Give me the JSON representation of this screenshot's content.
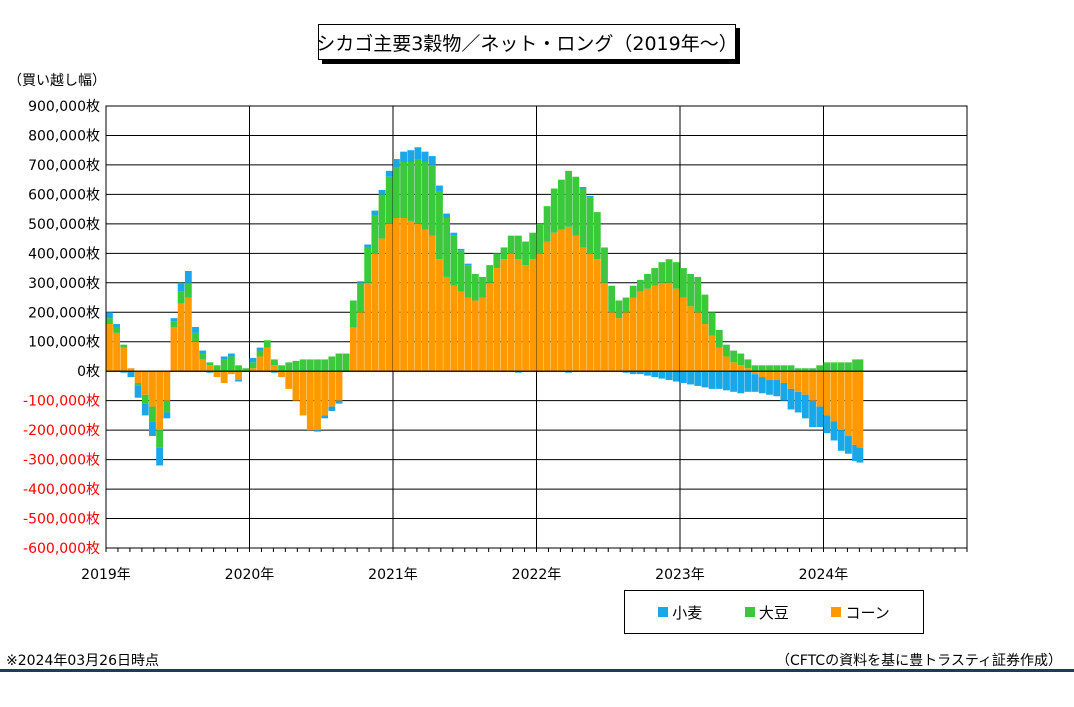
{
  "title": "シカゴ主要3穀物／ネット・ロング（2019年～）",
  "unit_label": "（買い越し幅）",
  "footnote": "※2024年03月26日時点",
  "source": "（CFTCの資料を基に豊トラスティ証券作成）",
  "colors": {
    "wheat": "#1aa7e8",
    "soy": "#3cc83c",
    "corn": "#ff9900",
    "negative_tick": "#ff0000",
    "grid": "#000000",
    "rule": "#1f3864"
  },
  "chart_data": {
    "type": "bar",
    "stacked": true,
    "title": "シカゴ主要3穀物／ネット・ロング（2019年～）",
    "ylabel": "（買い越し幅）",
    "ylim": [
      -600000,
      900000
    ],
    "xlim": [
      2019.0,
      2025.0
    ],
    "grid": true,
    "legend_position": "bottom-right",
    "y_ticks": [
      900000,
      800000,
      700000,
      600000,
      500000,
      400000,
      300000,
      200000,
      100000,
      0,
      -100000,
      -200000,
      -300000,
      -400000,
      -500000,
      -600000
    ],
    "y_tick_labels": [
      "900,000枚",
      "800,000枚",
      "700,000枚",
      "600,000枚",
      "500,000枚",
      "400,000枚",
      "300,000枚",
      "200,000枚",
      "100,000枚",
      "0枚",
      "-100,000枚",
      "-200,000枚",
      "-300,000枚",
      "-400,000枚",
      "-500,000枚",
      "-600,000枚"
    ],
    "x_tick_labels": [
      "2019年",
      "2020年",
      "2021年",
      "2022年",
      "2023年",
      "2024年"
    ],
    "x_tick_values": [
      2019,
      2020,
      2021,
      2022,
      2023,
      2024
    ],
    "x": [
      2019.0,
      2019.05,
      2019.1,
      2019.15,
      2019.2,
      2019.25,
      2019.3,
      2019.35,
      2019.4,
      2019.45,
      2019.5,
      2019.55,
      2019.6,
      2019.65,
      2019.7,
      2019.75,
      2019.8,
      2019.85,
      2019.9,
      2019.95,
      2020.0,
      2020.05,
      2020.1,
      2020.15,
      2020.2,
      2020.25,
      2020.3,
      2020.35,
      2020.4,
      2020.45,
      2020.5,
      2020.55,
      2020.6,
      2020.65,
      2020.7,
      2020.75,
      2020.8,
      2020.85,
      2020.9,
      2020.95,
      2021.0,
      2021.05,
      2021.1,
      2021.15,
      2021.2,
      2021.25,
      2021.3,
      2021.35,
      2021.4,
      2021.45,
      2021.5,
      2021.55,
      2021.6,
      2021.65,
      2021.7,
      2021.75,
      2021.8,
      2021.85,
      2021.9,
      2021.95,
      2022.0,
      2022.05,
      2022.1,
      2022.15,
      2022.2,
      2022.25,
      2022.3,
      2022.35,
      2022.4,
      2022.45,
      2022.5,
      2022.55,
      2022.6,
      2022.65,
      2022.7,
      2022.75,
      2022.8,
      2022.85,
      2022.9,
      2022.95,
      2023.0,
      2023.05,
      2023.1,
      2023.15,
      2023.2,
      2023.25,
      2023.3,
      2023.35,
      2023.4,
      2023.45,
      2023.5,
      2023.55,
      2023.6,
      2023.65,
      2023.7,
      2023.75,
      2023.8,
      2023.85,
      2023.9,
      2023.95,
      2024.0,
      2024.05,
      2024.1,
      2024.15,
      2024.2,
      2024.23
    ],
    "series": [
      {
        "name": "小麦",
        "color": "#1aa7e8",
        "values": [
          20000,
          10000,
          -5000,
          -20000,
          -40000,
          -40000,
          -50000,
          -60000,
          -20000,
          10000,
          30000,
          40000,
          20000,
          10000,
          -5000,
          0,
          10000,
          10000,
          -5000,
          0,
          15000,
          10000,
          0,
          -5000,
          0,
          0,
          0,
          0,
          0,
          -5000,
          -10000,
          -15000,
          -10000,
          0,
          0,
          5000,
          10000,
          15000,
          15000,
          20000,
          30000,
          35000,
          40000,
          40000,
          35000,
          30000,
          20000,
          15000,
          10000,
          5000,
          5000,
          0,
          0,
          0,
          0,
          0,
          0,
          -5000,
          0,
          0,
          0,
          0,
          0,
          0,
          -5000,
          0,
          5000,
          5000,
          0,
          0,
          0,
          0,
          -5000,
          -10000,
          -10000,
          -15000,
          -20000,
          -25000,
          -30000,
          -35000,
          -40000,
          -45000,
          -50000,
          -55000,
          -60000,
          -60000,
          -65000,
          -70000,
          -75000,
          -70000,
          -60000,
          -55000,
          -50000,
          -55000,
          -60000,
          -70000,
          -70000,
          -80000,
          -90000,
          -70000,
          -60000,
          -65000,
          -70000,
          -60000,
          -55000,
          -50000
        ]
      },
      {
        "name": "大豆",
        "color": "#3cc83c",
        "values": [
          20000,
          20000,
          10000,
          0,
          -10000,
          -30000,
          -50000,
          -60000,
          -40000,
          20000,
          40000,
          50000,
          30000,
          20000,
          10000,
          20000,
          40000,
          50000,
          20000,
          10000,
          20000,
          20000,
          25000,
          20000,
          20000,
          30000,
          35000,
          40000,
          40000,
          40000,
          40000,
          50000,
          60000,
          60000,
          90000,
          100000,
          120000,
          130000,
          150000,
          160000,
          170000,
          190000,
          200000,
          220000,
          230000,
          240000,
          230000,
          200000,
          170000,
          140000,
          110000,
          90000,
          70000,
          60000,
          50000,
          40000,
          60000,
          80000,
          80000,
          90000,
          100000,
          120000,
          150000,
          170000,
          190000,
          200000,
          200000,
          190000,
          160000,
          120000,
          90000,
          60000,
          50000,
          40000,
          40000,
          50000,
          60000,
          70000,
          80000,
          90000,
          100000,
          110000,
          120000,
          100000,
          80000,
          60000,
          40000,
          40000,
          40000,
          30000,
          20000,
          20000,
          20000,
          20000,
          20000,
          20000,
          10000,
          10000,
          10000,
          20000,
          30000,
          30000,
          30000,
          30000,
          40000,
          40000
        ]
      },
      {
        "name": "コーン",
        "color": "#ff9900",
        "values": [
          160000,
          130000,
          80000,
          10000,
          -40000,
          -80000,
          -120000,
          -200000,
          -100000,
          150000,
          230000,
          250000,
          100000,
          40000,
          20000,
          -20000,
          -40000,
          -10000,
          -30000,
          0,
          10000,
          50000,
          80000,
          20000,
          -20000,
          -60000,
          -100000,
          -150000,
          -200000,
          -200000,
          -150000,
          -120000,
          -100000,
          0,
          150000,
          200000,
          300000,
          400000,
          450000,
          500000,
          520000,
          520000,
          510000,
          500000,
          480000,
          460000,
          380000,
          320000,
          290000,
          270000,
          250000,
          240000,
          250000,
          300000,
          350000,
          380000,
          400000,
          380000,
          360000,
          380000,
          400000,
          440000,
          470000,
          480000,
          490000,
          460000,
          420000,
          400000,
          380000,
          300000,
          200000,
          180000,
          200000,
          250000,
          270000,
          280000,
          290000,
          300000,
          300000,
          280000,
          250000,
          220000,
          200000,
          160000,
          120000,
          80000,
          50000,
          30000,
          20000,
          10000,
          -10000,
          -20000,
          -30000,
          -30000,
          -40000,
          -60000,
          -70000,
          -80000,
          -100000,
          -120000,
          -150000,
          -170000,
          -200000,
          -220000,
          -250000,
          -260000
        ]
      }
    ]
  },
  "legend": {
    "wheat": {
      "label": "小麦",
      "icon": "square-swatch"
    },
    "soy": {
      "label": "大豆",
      "icon": "square-swatch"
    },
    "corn": {
      "label": "コーン",
      "icon": "square-swatch"
    }
  }
}
